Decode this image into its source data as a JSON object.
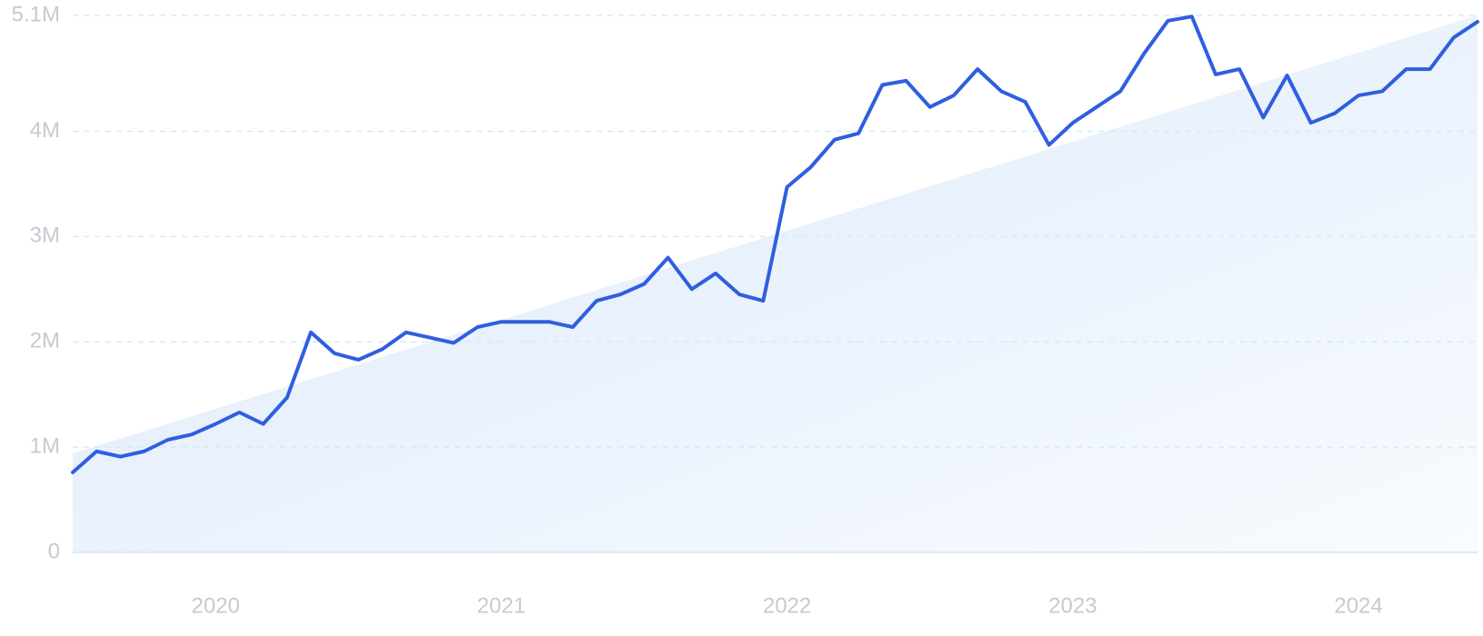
{
  "chart_data": {
    "type": "line",
    "categories": [
      null,
      null,
      null,
      null,
      null,
      null,
      "2020",
      null,
      null,
      null,
      null,
      null,
      null,
      null,
      null,
      null,
      null,
      null,
      "2021",
      null,
      null,
      null,
      null,
      null,
      null,
      null,
      null,
      null,
      null,
      null,
      "2022",
      null,
      null,
      null,
      null,
      null,
      null,
      null,
      null,
      null,
      null,
      null,
      "2023",
      null,
      null,
      null,
      null,
      null,
      null,
      null,
      null,
      null,
      null,
      null,
      "2024",
      null,
      null,
      null,
      null,
      null
    ],
    "series": [
      {
        "color": "#2f5fe0",
        "values": [
          760000,
          960000,
          910000,
          960000,
          1070000,
          1120000,
          1220000,
          1330000,
          1220000,
          1470000,
          2090000,
          1890000,
          1830000,
          1930000,
          2090000,
          2040000,
          1990000,
          2140000,
          2190000,
          2190000,
          2190000,
          2140000,
          2390000,
          2450000,
          2550000,
          2800000,
          2500000,
          2650000,
          2450000,
          2390000,
          3470000,
          3660000,
          3920000,
          3980000,
          4440000,
          4480000,
          4230000,
          4340000,
          4590000,
          4380000,
          4280000,
          3870000,
          4080000,
          4230000,
          4380000,
          4740000,
          5050000,
          5090000,
          4540000,
          4590000,
          4130000,
          4530000,
          4080000,
          4170000,
          4340000,
          4380000,
          4590000,
          4590000,
          4890000,
          5040000
        ]
      }
    ],
    "trend": [
      940000,
      5100000
    ],
    "ylim": [
      0,
      5100000
    ],
    "yticks": [
      0,
      {
        "value": 1000000,
        "label": "1M"
      },
      {
        "value": 2000000,
        "label": "2M"
      },
      {
        "value": 3000000,
        "label": "3M"
      },
      {
        "value": 4000000,
        "label": "4M"
      },
      {
        "value": 5100000,
        "label": "5.1M"
      }
    ],
    "grid": true
  }
}
